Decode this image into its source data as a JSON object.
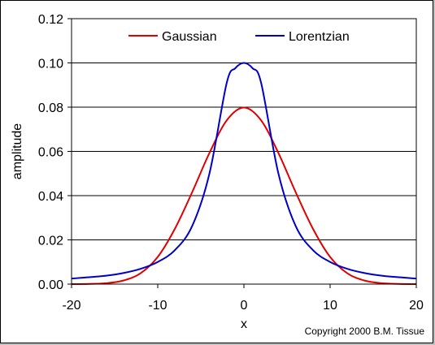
{
  "chart_data": {
    "type": "line",
    "title": "",
    "xlabel": "x",
    "ylabel": "amplitude",
    "xlim": [
      -20,
      20
    ],
    "ylim": [
      0,
      0.12
    ],
    "x_ticks": [
      -20,
      -10,
      0,
      10,
      20
    ],
    "y_ticks": [
      0.0,
      0.02,
      0.04,
      0.06,
      0.08,
      0.1,
      0.12
    ],
    "y_tick_labels": [
      "0.00",
      "0.02",
      "0.04",
      "0.06",
      "0.08",
      "0.10",
      "0.12"
    ],
    "x_tick_labels": [
      "-20",
      "-10",
      "0",
      "10",
      "20"
    ],
    "grid": "horizontal",
    "legend_position": "top",
    "series": [
      {
        "name": "Gaussian",
        "color": "#e00000",
        "x": [
          -20,
          -18,
          -16,
          -14,
          -12,
          -10,
          -8,
          -6,
          -4,
          -2,
          0,
          2,
          4,
          6,
          8,
          10,
          12,
          14,
          16,
          18,
          20
        ],
        "values": [
          0.0,
          0.0001,
          0.0004,
          0.0016,
          0.0049,
          0.0123,
          0.0251,
          0.0416,
          0.0593,
          0.074,
          0.0798,
          0.074,
          0.0593,
          0.0416,
          0.0251,
          0.0123,
          0.0049,
          0.0016,
          0.0004,
          0.0001,
          0.0
        ]
      },
      {
        "name": "Lorentzian",
        "color": "#0000c8",
        "x": [
          -20,
          -18,
          -16,
          -14,
          -12,
          -10,
          -8,
          -6,
          -4,
          -2,
          -1,
          0,
          1,
          2,
          4,
          6,
          8,
          10,
          12,
          14,
          16,
          18,
          20
        ],
        "values": [
          0.0025,
          0.0031,
          0.0038,
          0.005,
          0.0069,
          0.01,
          0.0154,
          0.0263,
          0.05,
          0.0909,
          0.0976,
          0.1,
          0.0976,
          0.0909,
          0.05,
          0.0263,
          0.0154,
          0.01,
          0.0069,
          0.005,
          0.0038,
          0.0031,
          0.0025
        ]
      }
    ]
  },
  "copyright": "Copyright 2000 B.M. Tissue"
}
